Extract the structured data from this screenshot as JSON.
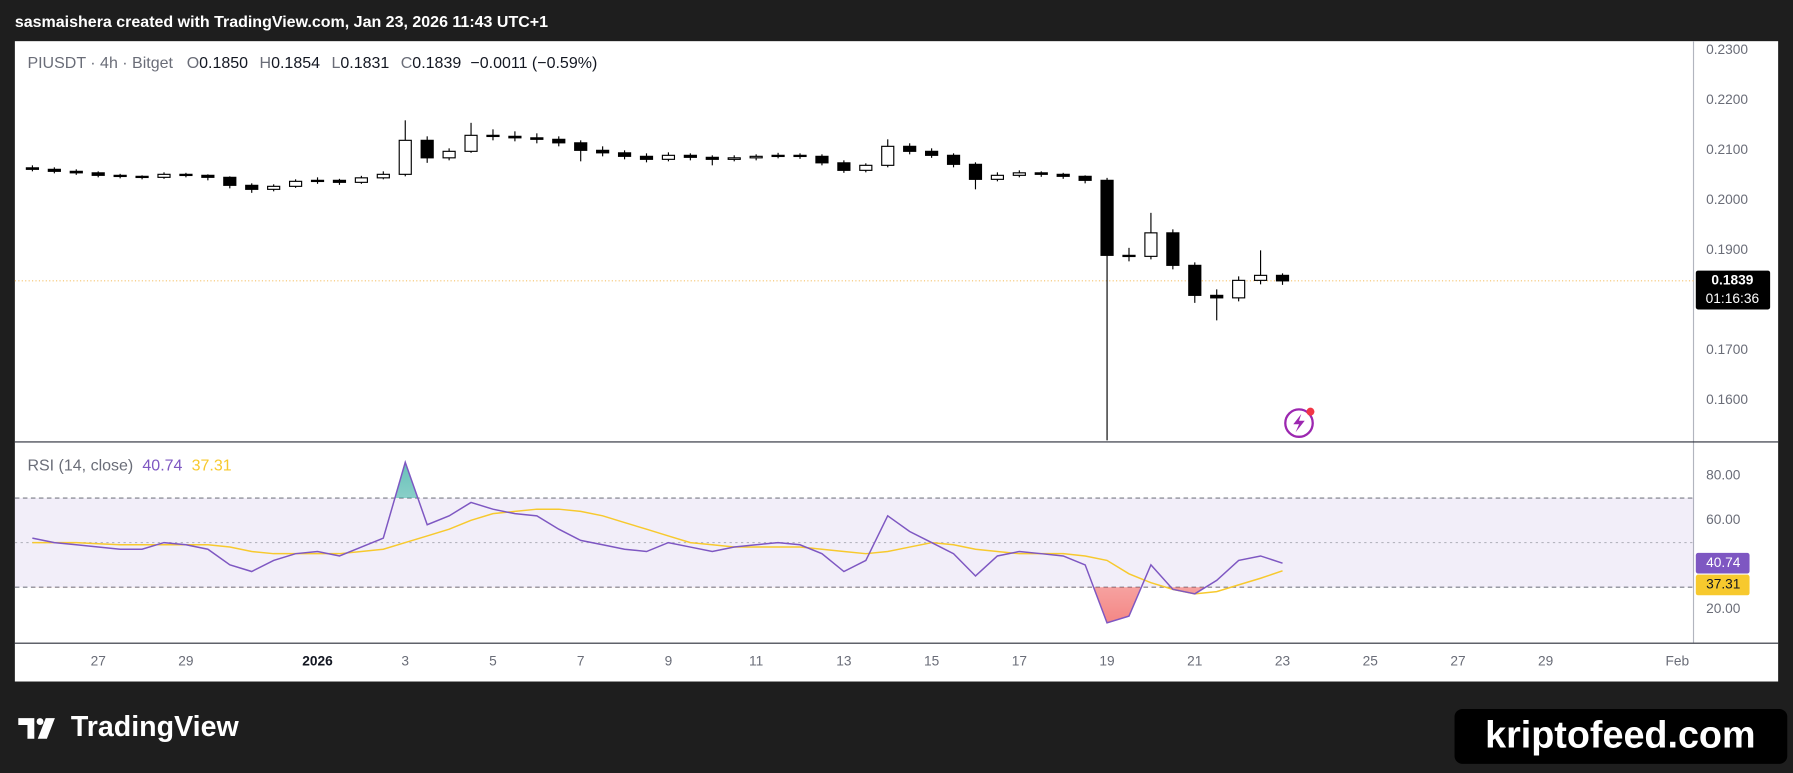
{
  "header": {
    "title": "sasmaishera created with TradingView.com, Jan 23, 2026 11:43 UTC+1"
  },
  "footer": {
    "brand": "TradingView",
    "watermark": "kriptofeed.com"
  },
  "chart_data": [
    {
      "type": "candlestick",
      "title": "PIUSDT · 4h · Bitget",
      "legend": {
        "labels": [
          "O",
          "H",
          "L",
          "C"
        ],
        "value_labels": [
          "0.1850",
          "0.1854",
          "0.1831",
          "0.1839"
        ],
        "change": "−0.0011 (−0.59%)"
      },
      "countdown": "01:16:36",
      "x": [
        -0.5,
        0,
        0.5,
        1,
        1.5,
        2,
        2.5,
        3,
        3.5,
        4,
        4.5,
        5,
        5.5,
        6,
        6.5,
        7,
        7.5,
        8,
        8.5,
        9,
        9.5,
        10,
        10.5,
        11,
        11.5,
        12,
        12.5,
        13,
        13.5,
        14,
        14.5,
        15,
        15.5,
        16,
        16.5,
        17,
        17.5,
        18,
        18.5,
        19,
        19.5,
        20,
        20.5,
        21,
        21.5,
        22,
        22.5,
        23,
        23.5,
        24,
        24.5,
        25,
        25.5,
        26,
        26.5,
        27,
        27.5,
        28
      ],
      "open": [
        0.2065,
        0.2062,
        0.2058,
        0.2055,
        0.205,
        0.2048,
        0.2046,
        0.2052,
        0.205,
        0.2046,
        0.203,
        0.2022,
        0.2028,
        0.2038,
        0.204,
        0.2036,
        0.2045,
        0.2052,
        0.212,
        0.2085,
        0.2098,
        0.213,
        0.2128,
        0.2125,
        0.2122,
        0.2115,
        0.21,
        0.2095,
        0.2088,
        0.2082,
        0.209,
        0.2086,
        0.2082,
        0.2085,
        0.2088,
        0.209,
        0.2088,
        0.2075,
        0.206,
        0.207,
        0.2108,
        0.2098,
        0.209,
        0.2072,
        0.2042,
        0.205,
        0.2055,
        0.2052,
        0.2048,
        0.204,
        0.189,
        0.1888,
        0.1935,
        0.187,
        0.181,
        0.1805,
        0.184,
        0.185
      ],
      "high": [
        0.207,
        0.2066,
        0.2062,
        0.2058,
        0.2053,
        0.205,
        0.2056,
        0.2055,
        0.2052,
        0.2048,
        0.2034,
        0.2032,
        0.2042,
        0.2046,
        0.2043,
        0.2049,
        0.2058,
        0.216,
        0.2128,
        0.2104,
        0.2155,
        0.2142,
        0.2138,
        0.2134,
        0.2128,
        0.212,
        0.2108,
        0.21,
        0.2094,
        0.2096,
        0.2094,
        0.209,
        0.209,
        0.2092,
        0.2095,
        0.2094,
        0.2092,
        0.208,
        0.2074,
        0.2122,
        0.2114,
        0.2104,
        0.2094,
        0.2076,
        0.2056,
        0.206,
        0.2058,
        0.2055,
        0.205,
        0.2045,
        0.1905,
        0.1975,
        0.1942,
        0.1876,
        0.1822,
        0.1848,
        0.19,
        0.1854
      ],
      "low": [
        0.2058,
        0.2054,
        0.2051,
        0.2046,
        0.2044,
        0.2042,
        0.2043,
        0.2046,
        0.204,
        0.2024,
        0.2015,
        0.2018,
        0.2025,
        0.2033,
        0.2031,
        0.2033,
        0.2042,
        0.2048,
        0.2075,
        0.208,
        0.2095,
        0.212,
        0.2118,
        0.2114,
        0.2108,
        0.2078,
        0.2088,
        0.2082,
        0.2076,
        0.2078,
        0.208,
        0.207,
        0.2078,
        0.208,
        0.2084,
        0.2083,
        0.207,
        0.2055,
        0.2056,
        0.2066,
        0.2092,
        0.2085,
        0.2066,
        0.2022,
        0.2038,
        0.2046,
        0.2047,
        0.2043,
        0.2034,
        0.152,
        0.1878,
        0.1882,
        0.1862,
        0.1795,
        0.176,
        0.1798,
        0.1832,
        0.1831
      ],
      "close": [
        0.2062,
        0.2058,
        0.2055,
        0.205,
        0.2048,
        0.2046,
        0.2052,
        0.205,
        0.2046,
        0.203,
        0.2022,
        0.2028,
        0.2038,
        0.204,
        0.2036,
        0.2045,
        0.2052,
        0.212,
        0.2085,
        0.2098,
        0.213,
        0.2128,
        0.2125,
        0.2122,
        0.2115,
        0.21,
        0.2095,
        0.2088,
        0.2082,
        0.209,
        0.2086,
        0.2082,
        0.2085,
        0.2088,
        0.209,
        0.2088,
        0.2075,
        0.206,
        0.207,
        0.2108,
        0.2098,
        0.209,
        0.2072,
        0.2042,
        0.205,
        0.2055,
        0.2052,
        0.2048,
        0.204,
        0.189,
        0.1888,
        0.1935,
        0.187,
        0.181,
        0.1805,
        0.184,
        0.185,
        0.1839
      ],
      "up_color": "#ffffff",
      "down_color": "#000000",
      "last_line_color": "#f5c26b",
      "xlim": [
        -0.9,
        37.37
      ],
      "ylim": [
        0.1518,
        0.2316
      ],
      "yticks": [
        {
          "value": 0.23,
          "label": "0.2300"
        },
        {
          "value": 0.22,
          "label": "0.2200"
        },
        {
          "value": 0.21,
          "label": "0.2100"
        },
        {
          "value": 0.2,
          "label": "0.2000"
        },
        {
          "value": 0.19,
          "label": "0.1900"
        },
        {
          "value": 0.17,
          "label": "0.1700"
        },
        {
          "value": 0.16,
          "label": "0.1600"
        }
      ]
    },
    {
      "type": "line",
      "title": "RSI (14, close)",
      "series": [
        {
          "color": "#7e57c2",
          "values": [
            52,
            50,
            49,
            48,
            47,
            47,
            50,
            49,
            47,
            40,
            37,
            42,
            45,
            46,
            44,
            48,
            52,
            86,
            58,
            62,
            68,
            65,
            63,
            62,
            56,
            51,
            49,
            47,
            46,
            50,
            48,
            46,
            48,
            49,
            50,
            49,
            45,
            37,
            42,
            62,
            55,
            50,
            45,
            35,
            44,
            46,
            45,
            44,
            40,
            14,
            17,
            40,
            29,
            27,
            33,
            42,
            44,
            40.74
          ]
        },
        {
          "color": "#f7c92e",
          "values": [
            50,
            50,
            50,
            49.5,
            49,
            49,
            49,
            49,
            49,
            48,
            46,
            45,
            45,
            45,
            45,
            46,
            47,
            50,
            53,
            56,
            60,
            63,
            64,
            65,
            65,
            64,
            62,
            59,
            56,
            53,
            50,
            49,
            48,
            48,
            48,
            48,
            47,
            46,
            45,
            46,
            48,
            50,
            49,
            47,
            46,
            45,
            45,
            45,
            44,
            42,
            36,
            32,
            29,
            27,
            28,
            31,
            34,
            37.31
          ]
        }
      ],
      "bands": [
        30,
        50,
        70
      ],
      "band_color": "#7e57c2",
      "ylim": [
        5.1,
        94.9
      ],
      "yticks": [
        {
          "value": 80,
          "label": "80.00"
        },
        {
          "value": 60,
          "label": "60.00"
        },
        {
          "value": 20,
          "label": "20.00"
        }
      ],
      "xticks": [
        {
          "value": 1,
          "label": "27"
        },
        {
          "value": 3,
          "label": "29"
        },
        {
          "value": 6,
          "label": "2026"
        },
        {
          "value": 8,
          "label": "3"
        },
        {
          "value": 10,
          "label": "5"
        },
        {
          "value": 12,
          "label": "7"
        },
        {
          "value": 14,
          "label": "9"
        },
        {
          "value": 16,
          "label": "11"
        },
        {
          "value": 18,
          "label": "13"
        },
        {
          "value": 20,
          "label": "15"
        },
        {
          "value": 22,
          "label": "17"
        },
        {
          "value": 24,
          "label": "19"
        },
        {
          "value": 26,
          "label": "21"
        },
        {
          "value": 28,
          "label": "23"
        },
        {
          "value": 30,
          "label": "25"
        },
        {
          "value": 32,
          "label": "27"
        },
        {
          "value": 34,
          "label": "29"
        },
        {
          "value": 37,
          "label": "Feb"
        }
      ]
    }
  ]
}
